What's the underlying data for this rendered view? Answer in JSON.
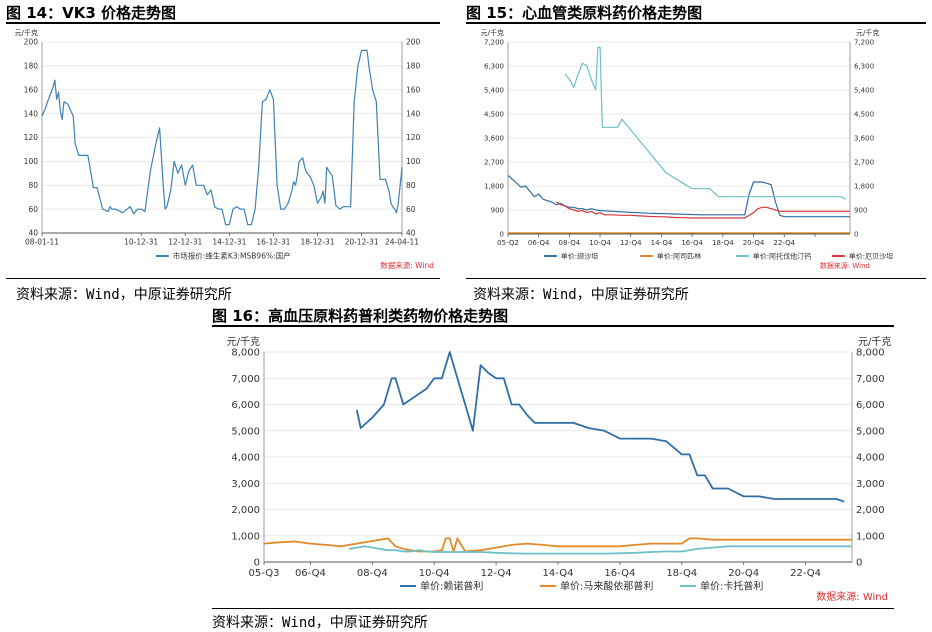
{
  "panels": [
    {
      "title": "图 14：VK3 价格走势图",
      "source": "资料来源：Wind，中原证券研究所",
      "chart_data": {
        "type": "line",
        "unit_left": "元/千克",
        "unit_right": "",
        "ylim": [
          40,
          200
        ],
        "yticks": [
          40,
          60,
          80,
          100,
          120,
          140,
          160,
          180,
          200
        ],
        "ytick_labels": [
          "40",
          "60",
          "80",
          "100",
          "120",
          "140",
          "160",
          "180",
          "200"
        ],
        "xlim": [
          0,
          196
        ],
        "xticks": [
          0,
          54,
          78,
          102,
          126,
          150,
          174,
          196
        ],
        "xtick_labels": [
          "08-01-11",
          "10-12-31",
          "12-12-31",
          "14-12-31",
          "16-12-31",
          "18-12-31",
          "20-12-31",
          "24-04-11"
        ],
        "data_source_label": "数据来源: Wind",
        "series": [
          {
            "name": "市场报价:维生素K3:MSB96%:国产",
            "color": "#3c82b4",
            "x": [
              0,
              2,
              3,
              6,
              7,
              8,
              9,
              10,
              11,
              12,
              14,
              17,
              18,
              20,
              22,
              25,
              28,
              30,
              33,
              36,
              37,
              38,
              40,
              44,
              48,
              50,
              52,
              54,
              56,
              59,
              62,
              64,
              66,
              67,
              68,
              70,
              72,
              74,
              76,
              78,
              80,
              82,
              84,
              86,
              88,
              90,
              92,
              94,
              96,
              98,
              100,
              102,
              104,
              106,
              108,
              110,
              112,
              114,
              116,
              118,
              120,
              122,
              124,
              126,
              128,
              130,
              132,
              134,
              135,
              136,
              137,
              138,
              139,
              140,
              142,
              143,
              144,
              146,
              148,
              150,
              152,
              153,
              154,
              155,
              157,
              158,
              160,
              162,
              164,
              166,
              168,
              170,
              172,
              174,
              175,
              176,
              177,
              178,
              179,
              180,
              182,
              184,
              186,
              187,
              188,
              189,
              190,
              191,
              192,
              193,
              194,
              196
            ],
            "y": [
              138,
              145,
              150,
              162,
              168,
              152,
              158,
              142,
              135,
              150,
              148,
              138,
              115,
              105,
              105,
              105,
              78,
              78,
              60,
              58,
              62,
              60,
              60,
              57,
              62,
              56,
              60,
              60,
              58,
              92,
              115,
              128,
              80,
              60,
              62,
              75,
              100,
              90,
              97,
              80,
              92,
              97,
              80,
              80,
              80,
              72,
              76,
              62,
              60,
              60,
              47,
              47,
              60,
              62,
              60,
              60,
              47,
              47,
              60,
              95,
              150,
              152,
              160,
              152,
              80,
              60,
              60,
              65,
              70,
              75,
              83,
              80,
              88,
              100,
              103,
              95,
              91,
              87,
              80,
              65,
              70,
              75,
              65,
              95,
              90,
              88,
              63,
              60,
              62,
              62,
              62,
              150,
              180,
              193,
              193,
              193,
              193,
              180,
              170,
              160,
              150,
              85,
              85,
              85,
              80,
              75,
              65,
              62,
              60,
              57,
              65,
              95
            ]
          }
        ]
      }
    },
    {
      "title": "图 15：心血管类原料药价格走势图",
      "source": "资料来源：Wind，中原证券研究所",
      "chart_data": {
        "type": "line",
        "unit_left": "元/千克",
        "unit_right": "元/千克",
        "ylim": [
          0,
          7200
        ],
        "yticks": [
          0,
          900,
          1800,
          2700,
          3600,
          4500,
          5400,
          6300,
          7200
        ],
        "ytick_labels": [
          "0",
          "900",
          "1,800",
          "2,700",
          "3,600",
          "4,500",
          "5,400",
          "6,300",
          "7,200"
        ],
        "xlim": [
          0,
          78
        ],
        "xticks": [
          0,
          7,
          14,
          21,
          28,
          35,
          42,
          49,
          56,
          63,
          70
        ],
        "xtick_labels": [
          "05-Q2",
          "06-Q4",
          "08-Q4",
          "10-Q4",
          "12-Q4",
          "14-Q4",
          "16-Q4",
          "18-Q4",
          "20-Q4",
          "22-Q4",
          ""
        ],
        "data_source_label": "数据来源: Wind",
        "series": [
          {
            "name": "单价:缬沙坦",
            "color": "#2f6ea6",
            "x": [
              0,
              1,
              2,
              3,
              4,
              5,
              6,
              7,
              8,
              9,
              10,
              11,
              12,
              13,
              14,
              15,
              16,
              17,
              18,
              19,
              20,
              21,
              22,
              23,
              24,
              25,
              26,
              27,
              28,
              30,
              32,
              34,
              36,
              38,
              40,
              42,
              44,
              46,
              48,
              50,
              52,
              54,
              55,
              56,
              57,
              58,
              59,
              60,
              61,
              62,
              63,
              64,
              66,
              68,
              70,
              72,
              74,
              76,
              78
            ],
            "y": [
              2200,
              2050,
              1900,
              1750,
              1800,
              1600,
              1400,
              1500,
              1300,
              1250,
              1200,
              1100,
              1150,
              1050,
              1000,
              1000,
              950,
              950,
              900,
              950,
              900,
              880,
              870,
              860,
              850,
              840,
              830,
              820,
              810,
              800,
              780,
              770,
              760,
              750,
              740,
              730,
              720,
              720,
              720,
              720,
              720,
              720,
              1500,
              1950,
              1950,
              1950,
              1900,
              1850,
              1200,
              700,
              650,
              650,
              650,
              650,
              650,
              650,
              650,
              650,
              650
            ]
          },
          {
            "name": "单价:阿司匹林",
            "color": "#e08a2c",
            "x": [
              0,
              10,
              20,
              30,
              40,
              50,
              60,
              70,
              78
            ],
            "y": [
              40,
              40,
              40,
              40,
              40,
              40,
              40,
              40,
              40
            ]
          },
          {
            "name": "单价:阿托伐他汀钙",
            "color": "#6cc0c6",
            "x": [
              13,
              14,
              15,
              16,
              17,
              18,
              19,
              20,
              20.5,
              21,
              21.5,
              22,
              23,
              24,
              25,
              26,
              27,
              28,
              29,
              30,
              31,
              32,
              33,
              34,
              35,
              36,
              38,
              40,
              42,
              44,
              46,
              48,
              50,
              52,
              54,
              56,
              58,
              60,
              62,
              64,
              66,
              68,
              70,
              72,
              74,
              76,
              77
            ],
            "y": [
              6000,
              5800,
              5500,
              6000,
              6400,
              6300,
              5800,
              5400,
              7000,
              7000,
              4000,
              4000,
              4000,
              4000,
              4000,
              4300,
              4100,
              3900,
              3700,
              3500,
              3300,
              3100,
              2900,
              2700,
              2500,
              2300,
              2100,
              1900,
              1700,
              1700,
              1700,
              1400,
              1400,
              1400,
              1400,
              1400,
              1400,
              1400,
              1400,
              1400,
              1400,
              1400,
              1400,
              1400,
              1400,
              1400,
              1300
            ]
          },
          {
            "name": "单价:厄贝沙坦",
            "color": "#d63838",
            "x": [
              11,
              12,
              13,
              14,
              15,
              16,
              17,
              18,
              19,
              20,
              21,
              22,
              24,
              26,
              28,
              30,
              32,
              34,
              36,
              38,
              40,
              42,
              44,
              46,
              48,
              50,
              52,
              54,
              55,
              56,
              57,
              58,
              59,
              60,
              61,
              62,
              64,
              66,
              68,
              70,
              72,
              74,
              76,
              78
            ],
            "y": [
              1200,
              1100,
              1050,
              950,
              900,
              850,
              880,
              800,
              850,
              750,
              800,
              720,
              720,
              700,
              700,
              680,
              660,
              650,
              640,
              620,
              610,
              600,
              600,
              600,
              600,
              600,
              600,
              600,
              700,
              800,
              950,
              1000,
              1000,
              950,
              900,
              850,
              850,
              850,
              850,
              850,
              850,
              850,
              850,
              850
            ]
          }
        ]
      }
    },
    {
      "title": "图 16：高血压原料药普利类药物价格走势图",
      "source": "资料来源：Wind，中原证券研究所",
      "chart_data": {
        "type": "line",
        "unit_left": "元/千克",
        "unit_right": "元/千克",
        "ylim": [
          0,
          8000
        ],
        "yticks": [
          0,
          1000,
          2000,
          3000,
          4000,
          5000,
          6000,
          7000,
          8000
        ],
        "ytick_labels": [
          "0",
          "1,000",
          "2,000",
          "3,000",
          "4,000",
          "5,000",
          "6,000",
          "7,000",
          "8,000"
        ],
        "xlim": [
          0,
          76
        ],
        "xticks": [
          0,
          6,
          14,
          22,
          30,
          38,
          46,
          54,
          62,
          70
        ],
        "xtick_labels": [
          "05-Q3",
          "06-Q4",
          "08-Q4",
          "10-Q4",
          "12-Q4",
          "14-Q4",
          "16-Q4",
          "18-Q4",
          "20-Q4",
          "22-Q4"
        ],
        "data_source_label": "数据来源: Wind",
        "series": [
          {
            "name": "单价:赖诺普利",
            "color": "#2f6ea6",
            "x": [
              12,
              12.5,
              14,
              15.5,
              16.5,
              17,
              18,
              19,
              21,
              22,
              23,
              24,
              25,
              26,
              27,
              28,
              29,
              30,
              31,
              32,
              33,
              34,
              35,
              36,
              38,
              40,
              42,
              44,
              46,
              48,
              50,
              52,
              54,
              55,
              56,
              57,
              58,
              60,
              62,
              64,
              66,
              68,
              70,
              72,
              74,
              75
            ],
            "y": [
              5800,
              5100,
              5500,
              6000,
              7000,
              7000,
              6000,
              6200,
              6600,
              7000,
              7000,
              8000,
              7000,
              6000,
              5000,
              7500,
              7200,
              7000,
              7000,
              6000,
              6000,
              5600,
              5300,
              5300,
              5300,
              5300,
              5100,
              5000,
              4700,
              4700,
              4700,
              4600,
              4100,
              4100,
              3300,
              3300,
              2800,
              2800,
              2500,
              2500,
              2400,
              2400,
              2400,
              2400,
              2400,
              2300
            ]
          },
          {
            "name": "单价:马来酸依那普利",
            "color": "#e08a2c",
            "x": [
              0,
              2,
              4,
              6,
              8,
              10,
              11,
              12,
              13,
              14,
              15,
              16,
              17,
              18,
              19,
              20,
              21,
              22,
              23,
              23.5,
              24,
              24.5,
              25,
              26,
              28,
              30,
              32,
              34,
              36,
              38,
              40,
              42,
              44,
              46,
              48,
              50,
              52,
              54,
              55,
              56,
              58,
              60,
              62,
              64,
              66,
              68,
              70,
              72,
              74,
              76
            ],
            "y": [
              700,
              750,
              780,
              700,
              650,
              600,
              650,
              700,
              750,
              800,
              850,
              900,
              600,
              500,
              450,
              400,
              400,
              400,
              450,
              900,
              900,
              400,
              900,
              400,
              450,
              550,
              650,
              700,
              650,
              600,
              600,
              600,
              600,
              600,
              650,
              700,
              700,
              700,
              900,
              900,
              850,
              850,
              850,
              850,
              850,
              850,
              850,
              850,
              850,
              850
            ]
          },
          {
            "name": "单价:卡托普利",
            "color": "#6cc0c6",
            "x": [
              11,
              12,
              13,
              14,
              15,
              16,
              17,
              18,
              19,
              20,
              21,
              22,
              24,
              26,
              28,
              30,
              32,
              34,
              36,
              38,
              40,
              42,
              44,
              46,
              48,
              50,
              52,
              54,
              56,
              58,
              60,
              62,
              64,
              66,
              68,
              70,
              72,
              74,
              76
            ],
            "y": [
              500,
              550,
              600,
              550,
              500,
              450,
              450,
              400,
              400,
              450,
              400,
              380,
              380,
              380,
              380,
              350,
              330,
              320,
              320,
              320,
              320,
              320,
              320,
              330,
              350,
              380,
              400,
              400,
              500,
              550,
              600,
              600,
              600,
              600,
              600,
              600,
              600,
              600,
              600
            ]
          }
        ]
      }
    }
  ]
}
